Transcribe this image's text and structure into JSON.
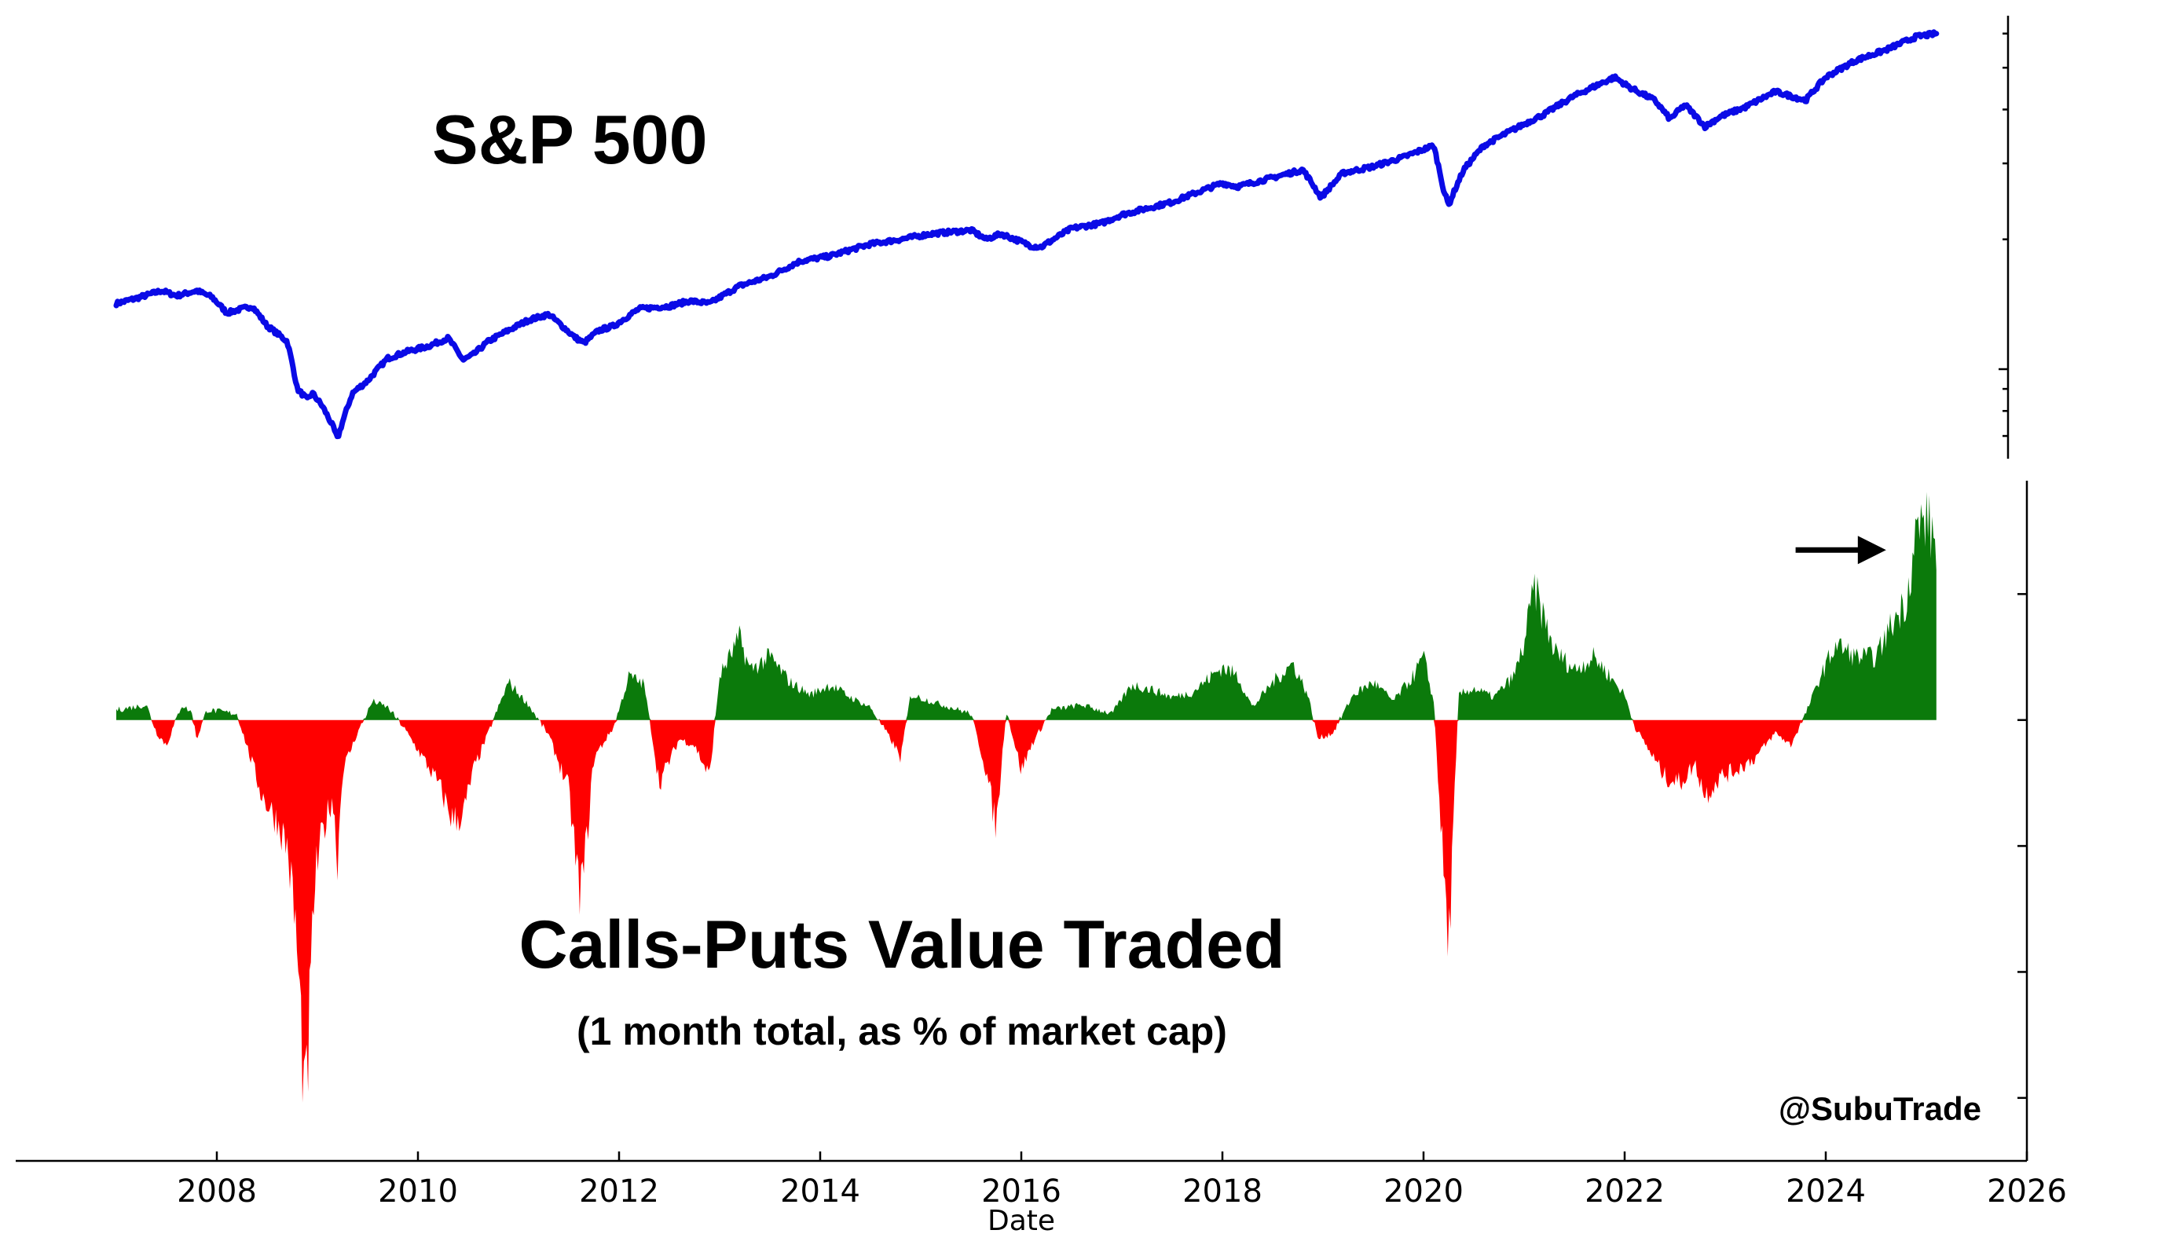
{
  "colors": {
    "spx_line": "#0a0ae6",
    "positive": "#0b7a0b",
    "negative": "#ff0000",
    "axis": "#000000"
  },
  "annotations": {
    "credit": "@SubuTrade"
  },
  "chart_data": [
    {
      "type": "line",
      "title": "S&P 500",
      "xlabel": "Date",
      "ylabel": "",
      "x_ticks": [
        2008,
        2010,
        2012,
        2014,
        2016,
        2018,
        2020,
        2022,
        2024,
        2026
      ],
      "xlim": [
        2006.0,
        2026.0
      ],
      "y_scale": "log",
      "ylim": [
        620,
        6600
      ],
      "grid": false,
      "series": [
        {
          "x": [
            2007.0,
            2007.2,
            2007.45,
            2007.6,
            2007.8,
            2007.95,
            2008.1,
            2008.35,
            2008.5,
            2008.7,
            2008.8,
            2008.9,
            2008.95,
            2009.05,
            2009.15,
            2009.2,
            2009.35,
            2009.5,
            2009.7,
            2009.9,
            2010.1,
            2010.3,
            2010.45,
            2010.55,
            2010.7,
            2010.9,
            2011.1,
            2011.3,
            2011.55,
            2011.65,
            2011.8,
            2011.95,
            2012.2,
            2012.5,
            2012.7,
            2012.9,
            2013.2,
            2013.5,
            2013.8,
            2014.1,
            2014.5,
            2014.8,
            2015.1,
            2015.5,
            2015.65,
            2015.8,
            2016.1,
            2016.2,
            2016.5,
            2016.8,
            2017.0,
            2017.5,
            2018.0,
            2018.15,
            2018.5,
            2018.8,
            2018.98,
            2019.2,
            2019.5,
            2019.8,
            2020.1,
            2020.2,
            2020.25,
            2020.4,
            2020.6,
            2020.9,
            2021.2,
            2021.5,
            2021.9,
            2022.05,
            2022.3,
            2022.45,
            2022.6,
            2022.8,
            2022.95,
            2023.2,
            2023.5,
            2023.8,
            2024.0,
            2024.3,
            2024.6,
            2024.9,
            2025.1
          ],
          "values": [
            1420,
            1460,
            1520,
            1480,
            1520,
            1470,
            1350,
            1400,
            1260,
            1160,
            900,
            850,
            880,
            820,
            740,
            690,
            880,
            940,
            1060,
            1100,
            1130,
            1180,
            1050,
            1080,
            1160,
            1230,
            1300,
            1340,
            1190,
            1150,
            1230,
            1260,
            1380,
            1400,
            1440,
            1420,
            1560,
            1640,
            1780,
            1830,
            1950,
            2000,
            2060,
            2100,
            2000,
            2060,
            1930,
            1920,
            2120,
            2180,
            2280,
            2440,
            2700,
            2650,
            2780,
            2900,
            2500,
            2850,
            2950,
            3100,
            3300,
            2600,
            2400,
            2900,
            3300,
            3600,
            3900,
            4300,
            4750,
            4500,
            4200,
            3800,
            4100,
            3650,
            3850,
            4050,
            4400,
            4200,
            4750,
            5200,
            5500,
            5900,
            6000
          ]
        }
      ]
    },
    {
      "type": "area",
      "title": "Calls-Puts Value Traded",
      "subtitle": "(1 month total, as % of market cap)",
      "xlabel": "Date",
      "ylabel": "",
      "x_ticks": [
        2008,
        2010,
        2012,
        2014,
        2016,
        2018,
        2020,
        2022,
        2024,
        2026
      ],
      "xlim": [
        2006.0,
        2026.0
      ],
      "y_ticks_unlabeled": 5,
      "ylim": [
        -3.5,
        1.9
      ],
      "grid": false,
      "fill_positive": "#0b7a0b",
      "fill_negative": "#ff0000",
      "annotation_arrow": {
        "x_start": 2023.7,
        "x_end": 2024.6,
        "y": 1.35
      },
      "series": [
        {
          "x": [
            2007.0,
            2007.3,
            2007.4,
            2007.5,
            2007.65,
            2007.75,
            2007.8,
            2007.9,
            2008.0,
            2008.2,
            2008.45,
            2008.6,
            2008.7,
            2008.78,
            2008.85,
            2008.88,
            2008.92,
            2008.97,
            2009.05,
            2009.15,
            2009.2,
            2009.25,
            2009.4,
            2009.55,
            2009.7,
            2009.85,
            2010.05,
            2010.2,
            2010.35,
            2010.45,
            2010.55,
            2010.7,
            2010.9,
            2011.1,
            2011.3,
            2011.5,
            2011.6,
            2011.65,
            2011.75,
            2011.95,
            2012.1,
            2012.25,
            2012.4,
            2012.6,
            2012.75,
            2012.9,
            2013.0,
            2013.2,
            2013.3,
            2013.5,
            2013.7,
            2013.9,
            2014.1,
            2014.3,
            2014.5,
            2014.7,
            2014.8,
            2014.9,
            2015.1,
            2015.3,
            2015.5,
            2015.65,
            2015.75,
            2015.85,
            2016.0,
            2016.1,
            2016.3,
            2016.6,
            2016.9,
            2017.1,
            2017.3,
            2017.5,
            2017.7,
            2018.0,
            2018.15,
            2018.3,
            2018.5,
            2018.7,
            2018.85,
            2018.95,
            2019.1,
            2019.3,
            2019.5,
            2019.7,
            2019.9,
            2020.0,
            2020.1,
            2020.2,
            2020.25,
            2020.35,
            2020.5,
            2020.7,
            2020.9,
            2021.0,
            2021.1,
            2021.3,
            2021.5,
            2021.7,
            2021.9,
            2022.0,
            2022.1,
            2022.25,
            2022.4,
            2022.55,
            2022.7,
            2022.8,
            2022.95,
            2023.1,
            2023.3,
            2023.5,
            2023.65,
            2023.8,
            2023.95,
            2024.1,
            2024.3,
            2024.5,
            2024.65,
            2024.8,
            2024.9,
            2025.0,
            2025.1
          ],
          "values": [
            0.08,
            0.12,
            -0.1,
            -0.2,
            0.12,
            0.06,
            -0.15,
            0.08,
            0.07,
            0.05,
            -0.6,
            -0.8,
            -1.0,
            -1.6,
            -2.6,
            -3.2,
            -2.4,
            -1.3,
            -0.9,
            -0.6,
            -1.1,
            -0.4,
            -0.1,
            0.15,
            0.1,
            -0.05,
            -0.3,
            -0.5,
            -0.8,
            -0.75,
            -0.4,
            -0.1,
            0.3,
            0.12,
            -0.12,
            -0.55,
            -1.35,
            -1.2,
            -0.3,
            -0.05,
            0.35,
            0.28,
            -0.5,
            -0.15,
            -0.2,
            -0.45,
            0.35,
            0.65,
            0.4,
            0.5,
            0.3,
            0.2,
            0.28,
            0.18,
            0.1,
            -0.15,
            -0.3,
            0.2,
            0.15,
            0.1,
            0.05,
            -0.4,
            -0.85,
            0.08,
            -0.4,
            -0.2,
            0.08,
            0.12,
            0.05,
            0.28,
            0.24,
            0.18,
            0.22,
            0.42,
            0.35,
            0.1,
            0.3,
            0.45,
            0.2,
            -0.15,
            -0.1,
            0.2,
            0.3,
            0.15,
            0.35,
            0.5,
            0.15,
            -1.2,
            -1.8,
            0.2,
            0.25,
            0.18,
            0.35,
            0.6,
            1.05,
            0.55,
            0.4,
            0.5,
            0.3,
            0.2,
            -0.05,
            -0.25,
            -0.45,
            -0.5,
            -0.35,
            -0.6,
            -0.45,
            -0.4,
            -0.3,
            -0.1,
            -0.2,
            0.05,
            0.35,
            0.6,
            0.5,
            0.5,
            0.75,
            0.95,
            1.5,
            1.6,
            1.38
          ]
        }
      ]
    }
  ]
}
